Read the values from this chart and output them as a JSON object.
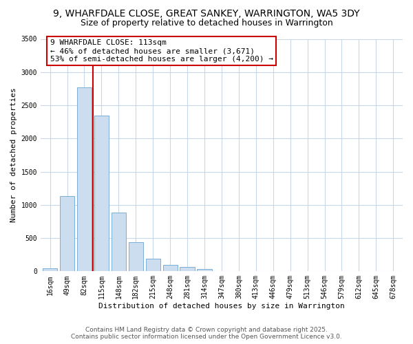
{
  "title": "9, WHARFDALE CLOSE, GREAT SANKEY, WARRINGTON, WA5 3DY",
  "subtitle": "Size of property relative to detached houses in Warrington",
  "xlabel": "Distribution of detached houses by size in Warrington",
  "ylabel": "Number of detached properties",
  "bar_color": "#ccddf0",
  "bar_edge_color": "#7aafd4",
  "categories": [
    "16sqm",
    "49sqm",
    "82sqm",
    "115sqm",
    "148sqm",
    "182sqm",
    "215sqm",
    "248sqm",
    "281sqm",
    "314sqm",
    "347sqm",
    "380sqm",
    "413sqm",
    "446sqm",
    "479sqm",
    "513sqm",
    "546sqm",
    "579sqm",
    "612sqm",
    "645sqm",
    "678sqm"
  ],
  "values": [
    45,
    1130,
    2770,
    2340,
    880,
    440,
    190,
    100,
    70,
    30,
    5,
    0,
    0,
    0,
    0,
    0,
    0,
    0,
    0,
    0,
    0
  ],
  "vline_idx": 2.5,
  "vline_color": "#cc0000",
  "annotation_title": "9 WHARFDALE CLOSE: 113sqm",
  "annotation_line1": "← 46% of detached houses are smaller (3,671)",
  "annotation_line2": "53% of semi-detached houses are larger (4,200) →",
  "annotation_box_color": "#ffffff",
  "annotation_box_edge": "#cc0000",
  "ylim": [
    0,
    3500
  ],
  "yticks": [
    0,
    500,
    1000,
    1500,
    2000,
    2500,
    3000,
    3500
  ],
  "footer_line1": "Contains HM Land Registry data © Crown copyright and database right 2025.",
  "footer_line2": "Contains public sector information licensed under the Open Government Licence v3.0.",
  "background_color": "#ffffff",
  "grid_color": "#c8d8e8",
  "title_fontsize": 10,
  "subtitle_fontsize": 9,
  "xlabel_fontsize": 8,
  "ylabel_fontsize": 8,
  "tick_fontsize": 7,
  "footer_fontsize": 6.5,
  "ann_fontsize": 8
}
